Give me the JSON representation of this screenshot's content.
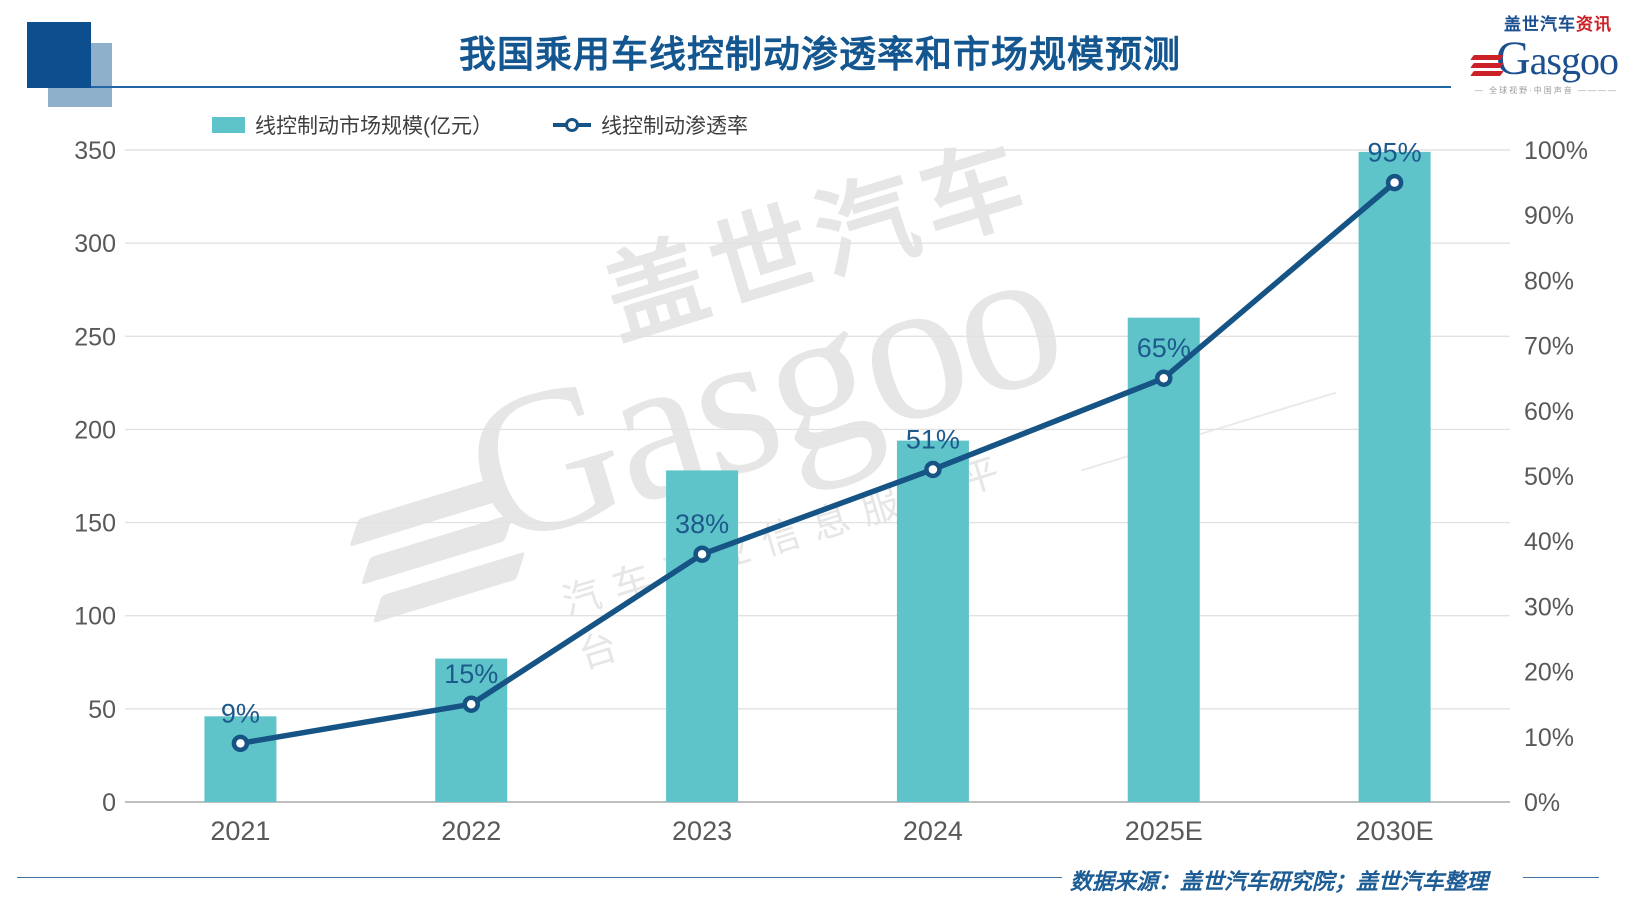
{
  "header": {
    "title": "我国乘用车线控制动渗透率和市场规模预测",
    "logo": {
      "brand_cn": "盖世汽车",
      "brand_cn_suffix": "资讯",
      "brand_en_initial": "G",
      "brand_en_rest": "asgoo",
      "tagline": "— 全球视野·中国声音 ————"
    }
  },
  "watermark": {
    "brand_cn": "盖世汽车",
    "brand_en": "Gasgoo",
    "tagline": "汽车产业信息服务平台"
  },
  "footer": {
    "source": "数据来源：盖世汽车研究院；盖世汽车整理"
  },
  "chart_data": {
    "type": "combo",
    "categories": [
      "2021",
      "2022",
      "2023",
      "2024",
      "2025E",
      "2030E"
    ],
    "series": [
      {
        "name": "线控制动市场规模(亿元）",
        "type": "bar",
        "axis": "left",
        "color": "#5fc4ca",
        "values": [
          46,
          77,
          178,
          194,
          260,
          349
        ]
      },
      {
        "name": "线控制动渗透率",
        "type": "line",
        "axis": "right",
        "color": "#165485",
        "values": [
          9,
          15,
          38,
          51,
          65,
          95
        ],
        "labels": [
          "9%",
          "15%",
          "38%",
          "51%",
          "65%",
          "95%"
        ]
      }
    ],
    "left_axis": {
      "min": 0,
      "max": 350,
      "step": 50,
      "ticks": [
        "0",
        "50",
        "100",
        "150",
        "200",
        "250",
        "300",
        "350"
      ]
    },
    "right_axis": {
      "min": 0,
      "max": 100,
      "step": 10,
      "ticks": [
        "0%",
        "10%",
        "20%",
        "30%",
        "40%",
        "50%",
        "60%",
        "70%",
        "80%",
        "90%",
        "100%"
      ]
    },
    "grid": "horizontal",
    "legend_position": "top-left"
  }
}
